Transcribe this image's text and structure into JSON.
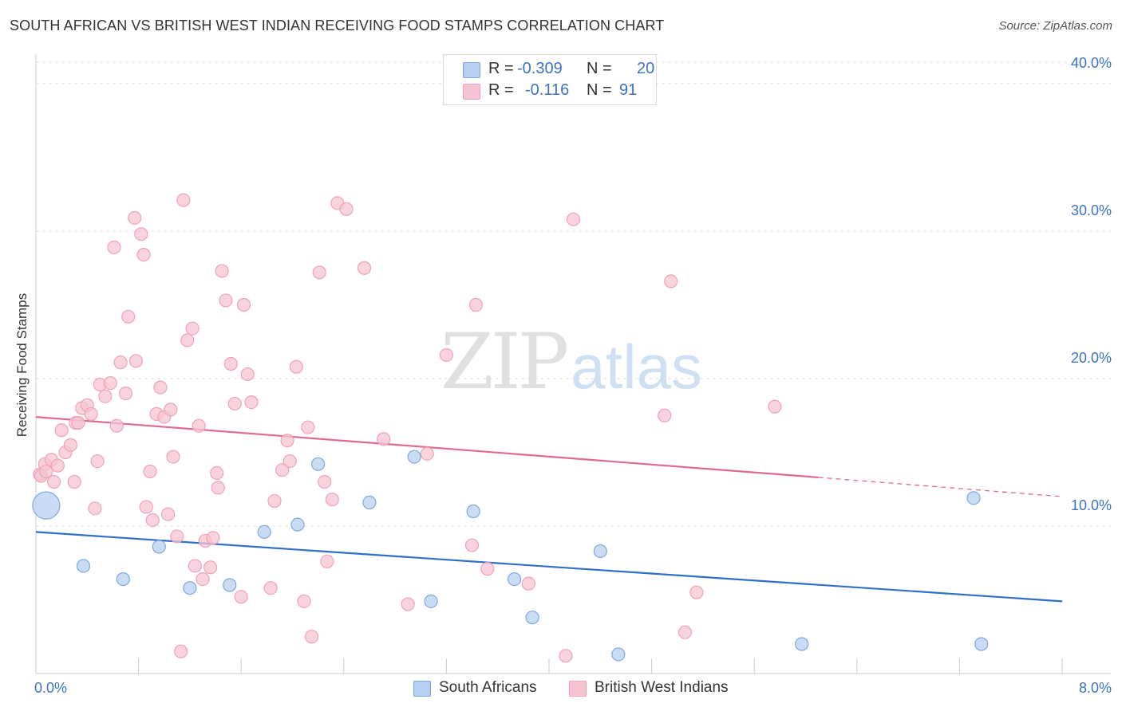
{
  "title": "SOUTH AFRICAN VS BRITISH WEST INDIAN RECEIVING FOOD STAMPS CORRELATION CHART",
  "source": "Source: ZipAtlas.com",
  "watermark": {
    "part1": "ZIP",
    "part2": "atlas"
  },
  "legend": [
    {
      "r_label": "R =",
      "r_value": "-0.309",
      "n_label": "N =",
      "n_value": "20"
    },
    {
      "r_label": "R =",
      "r_value": "-0.116",
      "n_label": "N =",
      "n_value": "91"
    }
  ],
  "colors": {
    "blue_fill": "#b8d0ef",
    "blue_stroke": "#7fa8de",
    "blue_line": "#2f6fc9",
    "pink_fill": "#f6c4d2",
    "pink_stroke": "#eea3b8",
    "pink_line": "#e06b92",
    "tick_text": "#3b73c4",
    "grid": "#dddddd"
  },
  "chart_data": {
    "type": "scatter",
    "title": "SOUTH AFRICAN VS BRITISH WEST INDIAN RECEIVING FOOD STAMPS CORRELATION CHART",
    "xlabel": "",
    "ylabel": "Receiving Food Stamps",
    "xlim": [
      0,
      8
    ],
    "ylim": [
      0,
      42
    ],
    "x_tick_labels": [
      "0.0%",
      "8.0%"
    ],
    "y_ticks": [
      10,
      20,
      30,
      40
    ],
    "y_tick_labels": [
      "10.0%",
      "20.0%",
      "30.0%",
      "40.0%"
    ],
    "grid": true,
    "legend_position": "top-center",
    "series": [
      {
        "name": "South Africans",
        "points": [
          [
            0.08,
            11.4
          ],
          [
            0.37,
            7.3
          ],
          [
            0.68,
            6.4
          ],
          [
            0.96,
            8.6
          ],
          [
            1.2,
            5.8
          ],
          [
            1.51,
            6.0
          ],
          [
            1.78,
            9.6
          ],
          [
            2.04,
            10.1
          ],
          [
            2.2,
            14.2
          ],
          [
            2.6,
            11.6
          ],
          [
            2.95,
            14.7
          ],
          [
            3.08,
            4.9
          ],
          [
            3.41,
            11.0
          ],
          [
            3.73,
            6.4
          ],
          [
            3.87,
            3.8
          ],
          [
            4.4,
            8.3
          ],
          [
            4.54,
            1.3
          ],
          [
            5.97,
            2.0
          ],
          [
            7.31,
            11.9
          ],
          [
            7.37,
            2.0
          ]
        ],
        "trend": {
          "x": [
            0,
            8
          ],
          "y": [
            9.6,
            4.9
          ]
        }
      },
      {
        "name": "British West Indians",
        "points": [
          [
            0.03,
            13.5
          ],
          [
            0.04,
            13.4
          ],
          [
            0.07,
            14.2
          ],
          [
            0.08,
            13.7
          ],
          [
            0.12,
            14.5
          ],
          [
            0.14,
            13.0
          ],
          [
            0.17,
            14.1
          ],
          [
            0.2,
            16.5
          ],
          [
            0.23,
            15.0
          ],
          [
            0.27,
            15.5
          ],
          [
            0.3,
            13.0
          ],
          [
            0.31,
            17.0
          ],
          [
            0.33,
            17.0
          ],
          [
            0.36,
            18.0
          ],
          [
            0.4,
            18.2
          ],
          [
            0.43,
            17.6
          ],
          [
            0.46,
            11.2
          ],
          [
            0.48,
            14.4
          ],
          [
            0.5,
            19.6
          ],
          [
            0.54,
            18.8
          ],
          [
            0.58,
            19.7
          ],
          [
            0.61,
            28.9
          ],
          [
            0.63,
            16.8
          ],
          [
            0.66,
            21.1
          ],
          [
            0.7,
            19.0
          ],
          [
            0.72,
            24.2
          ],
          [
            0.77,
            30.9
          ],
          [
            0.78,
            21.2
          ],
          [
            0.82,
            29.8
          ],
          [
            0.84,
            28.4
          ],
          [
            0.86,
            11.3
          ],
          [
            0.89,
            13.7
          ],
          [
            0.91,
            10.4
          ],
          [
            0.94,
            17.6
          ],
          [
            0.97,
            19.4
          ],
          [
            1.0,
            17.4
          ],
          [
            1.03,
            10.8
          ],
          [
            1.05,
            17.9
          ],
          [
            1.07,
            14.7
          ],
          [
            1.1,
            9.3
          ],
          [
            1.13,
            1.5
          ],
          [
            1.15,
            32.1
          ],
          [
            1.18,
            22.6
          ],
          [
            1.22,
            23.4
          ],
          [
            1.24,
            7.3
          ],
          [
            1.27,
            16.8
          ],
          [
            1.3,
            6.4
          ],
          [
            1.32,
            9.0
          ],
          [
            1.36,
            7.2
          ],
          [
            1.38,
            9.2
          ],
          [
            1.41,
            13.6
          ],
          [
            1.42,
            12.6
          ],
          [
            1.45,
            27.3
          ],
          [
            1.48,
            25.3
          ],
          [
            1.52,
            21.0
          ],
          [
            1.55,
            18.3
          ],
          [
            1.6,
            5.2
          ],
          [
            1.62,
            25.0
          ],
          [
            1.65,
            20.3
          ],
          [
            1.68,
            18.4
          ],
          [
            1.83,
            5.8
          ],
          [
            1.86,
            11.7
          ],
          [
            1.92,
            13.8
          ],
          [
            1.96,
            15.8
          ],
          [
            1.98,
            14.4
          ],
          [
            2.03,
            20.8
          ],
          [
            2.09,
            4.9
          ],
          [
            2.12,
            16.7
          ],
          [
            2.15,
            2.5
          ],
          [
            2.21,
            27.2
          ],
          [
            2.25,
            13.0
          ],
          [
            2.27,
            7.6
          ],
          [
            2.31,
            11.8
          ],
          [
            2.35,
            31.9
          ],
          [
            2.42,
            31.5
          ],
          [
            2.56,
            27.5
          ],
          [
            2.71,
            15.9
          ],
          [
            2.9,
            4.7
          ],
          [
            3.2,
            21.6
          ],
          [
            3.4,
            8.7
          ],
          [
            3.43,
            25.0
          ],
          [
            3.52,
            7.1
          ],
          [
            3.84,
            6.1
          ],
          [
            4.13,
            1.2
          ],
          [
            4.19,
            30.8
          ],
          [
            4.9,
            17.5
          ],
          [
            4.95,
            26.6
          ],
          [
            5.06,
            2.8
          ],
          [
            5.15,
            5.5
          ],
          [
            5.76,
            18.1
          ],
          [
            3.05,
            14.9
          ]
        ],
        "trend": {
          "x": [
            0,
            6.1
          ],
          "y": [
            17.4,
            13.3
          ]
        },
        "trend_extension": {
          "x": [
            6.1,
            8
          ],
          "y": [
            13.3,
            12.0
          ]
        }
      }
    ]
  }
}
